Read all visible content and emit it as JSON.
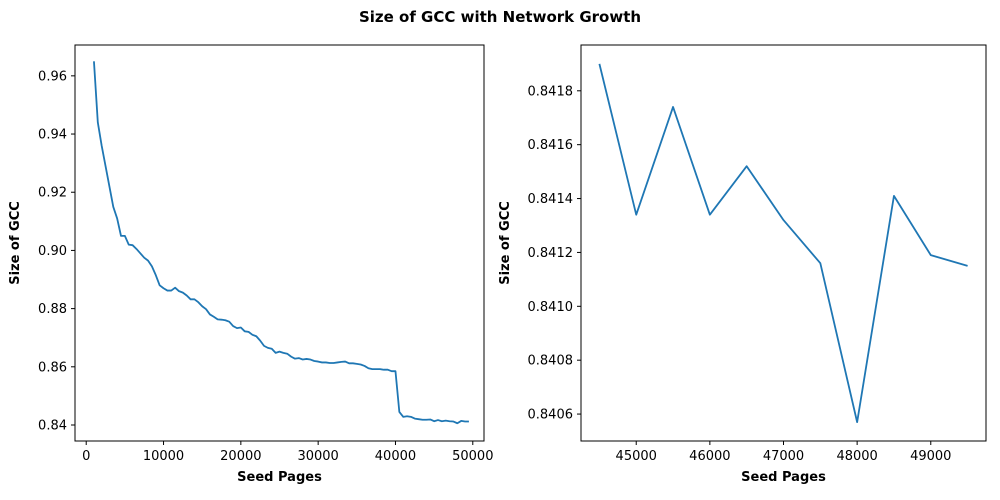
{
  "figure": {
    "title": "Size of GCC with Network Growth"
  },
  "chart_data": [
    {
      "type": "line",
      "title": "",
      "xlabel": "Seed Pages",
      "ylabel": "Size of GCC",
      "xlim": [
        -1450,
        51450
      ],
      "ylim": [
        0.8345,
        0.9706
      ],
      "xticks": [
        0,
        10000,
        20000,
        30000,
        40000,
        50000
      ],
      "xticklabels": [
        "0",
        "10000",
        "20000",
        "30000",
        "40000",
        "50000"
      ],
      "yticks": [
        0.84,
        0.86,
        0.88,
        0.9,
        0.92,
        0.94,
        0.96
      ],
      "yticklabels": [
        "0.84",
        "0.86",
        "0.88",
        "0.90",
        "0.92",
        "0.94",
        "0.96"
      ],
      "grid": false,
      "color": "#1f77b4",
      "series": [
        {
          "x": [
            1000,
            1500,
            2000,
            2500,
            3000,
            3500,
            4000,
            4500,
            5000,
            5500,
            6000,
            6500,
            7000,
            7500,
            8000,
            8500,
            9000,
            9500,
            10000,
            10500,
            11000,
            11500,
            12000,
            12500,
            13000,
            13500,
            14000,
            14500,
            15000,
            15500,
            16000,
            16500,
            17000,
            17500,
            18000,
            18500,
            19000,
            19500,
            20000,
            20500,
            21000,
            21500,
            22000,
            22500,
            23000,
            23500,
            24000,
            24500,
            25000,
            25500,
            26000,
            26500,
            27000,
            27500,
            28000,
            28500,
            29000,
            29500,
            30000,
            30500,
            31000,
            31500,
            32000,
            32500,
            33000,
            33500,
            34000,
            34500,
            35000,
            35500,
            36000,
            36500,
            37000,
            37500,
            38000,
            38500,
            39000,
            39500,
            40000,
            40500,
            41000,
            41500,
            42000,
            42500,
            43000,
            43500,
            44000,
            44500,
            45000,
            45500,
            46000,
            46500,
            47000,
            47500,
            48000,
            48500,
            49000,
            49500
          ],
          "y": [
            0.965,
            0.944,
            0.936,
            0.929,
            0.922,
            0.915,
            0.911,
            0.905,
            0.905,
            0.902,
            0.9018,
            0.9005,
            0.899,
            0.8975,
            0.8965,
            0.8945,
            0.8915,
            0.888,
            0.887,
            0.8862,
            0.8862,
            0.8872,
            0.886,
            0.8855,
            0.8845,
            0.8832,
            0.8832,
            0.8822,
            0.8808,
            0.8798,
            0.878,
            0.8772,
            0.8763,
            0.8762,
            0.876,
            0.8755,
            0.874,
            0.8733,
            0.8735,
            0.8722,
            0.872,
            0.871,
            0.8705,
            0.869,
            0.8672,
            0.8665,
            0.8662,
            0.8648,
            0.8652,
            0.8648,
            0.8645,
            0.8635,
            0.8628,
            0.863,
            0.8625,
            0.8627,
            0.8625,
            0.862,
            0.8618,
            0.8615,
            0.8615,
            0.8613,
            0.8613,
            0.8615,
            0.8617,
            0.8618,
            0.8612,
            0.8612,
            0.861,
            0.8608,
            0.8603,
            0.8595,
            0.8592,
            0.8592,
            0.8592,
            0.859,
            0.859,
            0.8585,
            0.8585,
            0.8445,
            0.8428,
            0.843,
            0.8428,
            0.8422,
            0.842,
            0.8418,
            0.8418,
            0.8419,
            0.8413,
            0.8417,
            0.8413,
            0.8415,
            0.8413,
            0.8412,
            0.8406,
            0.8414,
            0.8412,
            0.8412
          ]
        }
      ]
    },
    {
      "type": "line",
      "title": "",
      "xlabel": "Seed Pages",
      "ylabel": "Size of GCC",
      "xlim": [
        44250,
        49750
      ],
      "ylim": [
        0.8405,
        0.84197
      ],
      "xticks": [
        45000,
        46000,
        47000,
        48000,
        49000
      ],
      "xticklabels": [
        "45000",
        "46000",
        "47000",
        "48000",
        "49000"
      ],
      "yticks": [
        0.8406,
        0.8408,
        0.841,
        0.8412,
        0.8414,
        0.8416,
        0.8418
      ],
      "yticklabels": [
        "0.8406",
        "0.8408",
        "0.8410",
        "0.8412",
        "0.8414",
        "0.8416",
        "0.8418"
      ],
      "grid": false,
      "color": "#1f77b4",
      "series": [
        {
          "x": [
            44500,
            45000,
            45500,
            46000,
            46500,
            47000,
            47500,
            48000,
            48500,
            49000,
            49500
          ],
          "y": [
            0.8419,
            0.84134,
            0.84174,
            0.84134,
            0.84152,
            0.84132,
            0.84116,
            0.84057,
            0.84141,
            0.84119,
            0.84115
          ]
        }
      ]
    }
  ]
}
